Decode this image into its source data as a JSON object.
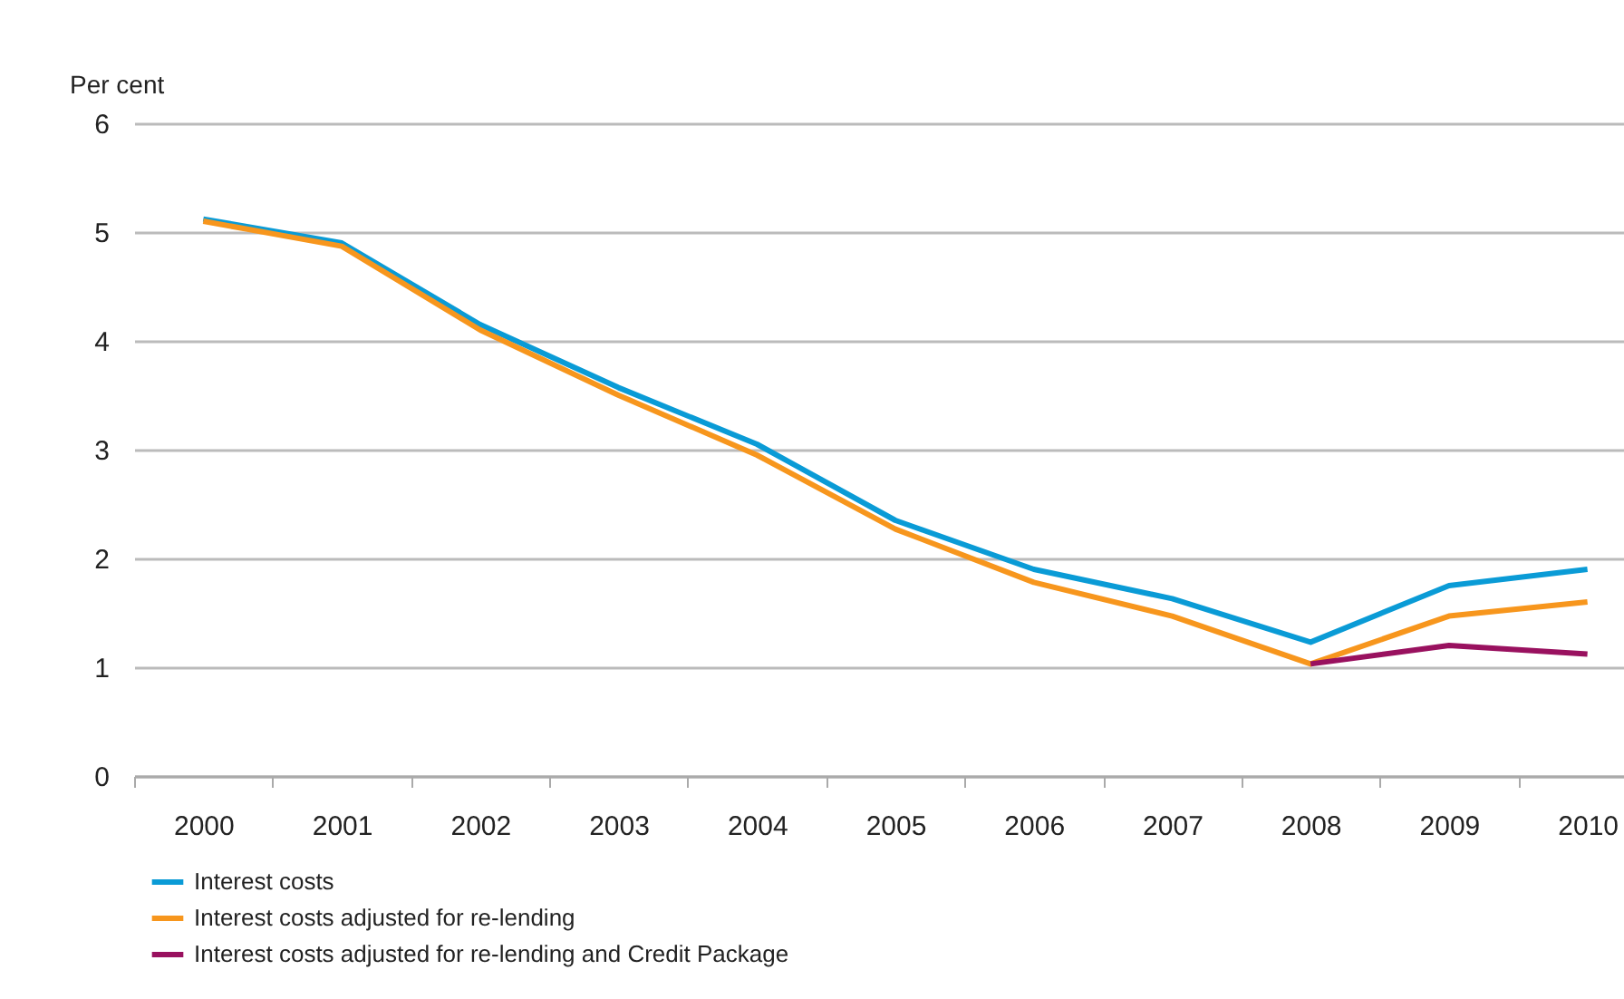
{
  "chart_data": {
    "type": "line",
    "ylabel": "Per cent",
    "categories": [
      "2000",
      "2001",
      "2002",
      "2003",
      "2004",
      "2005",
      "2006",
      "2007",
      "2008",
      "2009",
      "2010"
    ],
    "series": [
      {
        "name": "Interest costs",
        "color": "#0a9bd6",
        "values": [
          5.12,
          4.9,
          4.15,
          3.57,
          3.05,
          2.35,
          1.9,
          1.63,
          1.23,
          1.75,
          1.9
        ]
      },
      {
        "name": "Interest costs adjusted for re-lending",
        "color": "#f7961d",
        "values": [
          5.1,
          4.87,
          4.1,
          3.5,
          2.95,
          2.27,
          1.78,
          1.47,
          1.03,
          1.47,
          1.6
        ]
      },
      {
        "name": "Interest costs adjusted for re-lending and Credit Package",
        "color": "#99115f",
        "values": [
          null,
          null,
          null,
          null,
          null,
          null,
          null,
          null,
          1.03,
          1.2,
          1.12
        ]
      }
    ],
    "ylim": [
      0,
      6
    ],
    "yticks": [
      0,
      1,
      2,
      3,
      4,
      5,
      6
    ],
    "grid": "y",
    "legend": "bottom left",
    "marker": "none",
    "line_style": "solid"
  }
}
